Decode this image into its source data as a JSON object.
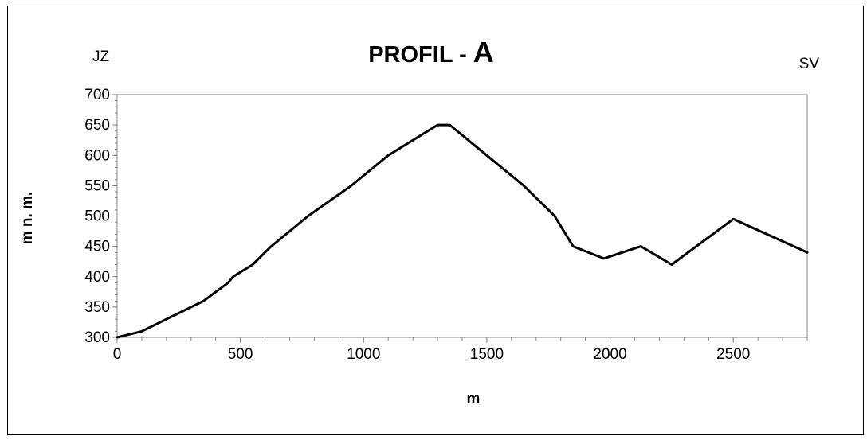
{
  "chart_data": {
    "type": "line",
    "title": {
      "main": "PROFIL - ",
      "suffix": "A"
    },
    "left_label": "JZ",
    "right_label": "SV",
    "xlabel": "m",
    "ylabel": "m n. m.",
    "xlim": [
      0,
      2800
    ],
    "ylim": [
      300,
      700
    ],
    "x_ticks": [
      0,
      500,
      1000,
      1500,
      2000,
      2500
    ],
    "x_tick_labels": [
      "0",
      "500",
      "1000",
      "1500",
      "2000",
      "2500"
    ],
    "y_ticks": [
      300,
      350,
      400,
      450,
      500,
      550,
      600,
      650,
      700
    ],
    "y_tick_labels": [
      "300",
      "350",
      "400",
      "450",
      "500",
      "550",
      "600",
      "650",
      "700"
    ],
    "grid": false,
    "legend": "none",
    "series": [
      {
        "color": "#000000",
        "x": [
          0,
          100,
          200,
          350,
          450,
          470,
          550,
          625,
          775,
          950,
          1100,
          1300,
          1350,
          1500,
          1650,
          1775,
          1850,
          1975,
          2125,
          2250,
          2500,
          2800
        ],
        "y": [
          300,
          310,
          330,
          360,
          390,
          400,
          420,
          450,
          500,
          550,
          600,
          650,
          650,
          600,
          550,
          500,
          450,
          430,
          450,
          420,
          495,
          440
        ]
      }
    ]
  }
}
